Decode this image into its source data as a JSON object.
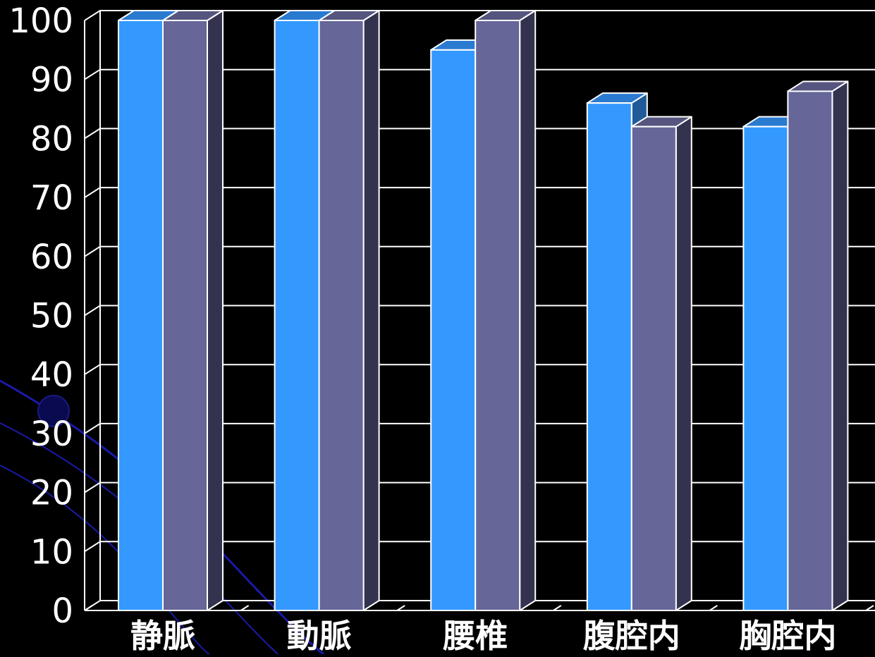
{
  "chart_data": {
    "type": "bar",
    "style": "3d-clustered-column",
    "categories": [
      "静脈",
      "動脈",
      "腰椎",
      "腹腔内",
      "胸腔内"
    ],
    "series": [
      {
        "values": [
          100,
          100,
          95,
          86,
          82
        ]
      },
      {
        "values": [
          100,
          100,
          100,
          82,
          88
        ]
      }
    ],
    "yticks": [
      "0",
      "10",
      "20",
      "30",
      "40",
      "50",
      "60",
      "70",
      "80",
      "90",
      "100"
    ],
    "ylim": [
      0,
      100
    ],
    "grid": true,
    "legend": "none"
  },
  "colors": {
    "background": "#000000",
    "series_front": [
      "#3399ff",
      "#666699"
    ],
    "series_top": [
      "#2a7ad0",
      "#55557f"
    ],
    "series_side": [
      "#1f5a99",
      "#333350"
    ],
    "axis": "#ffffff",
    "text": "#ffffff",
    "decor_line": "#1a1aa8",
    "decor_glow": "#0a0a50"
  }
}
